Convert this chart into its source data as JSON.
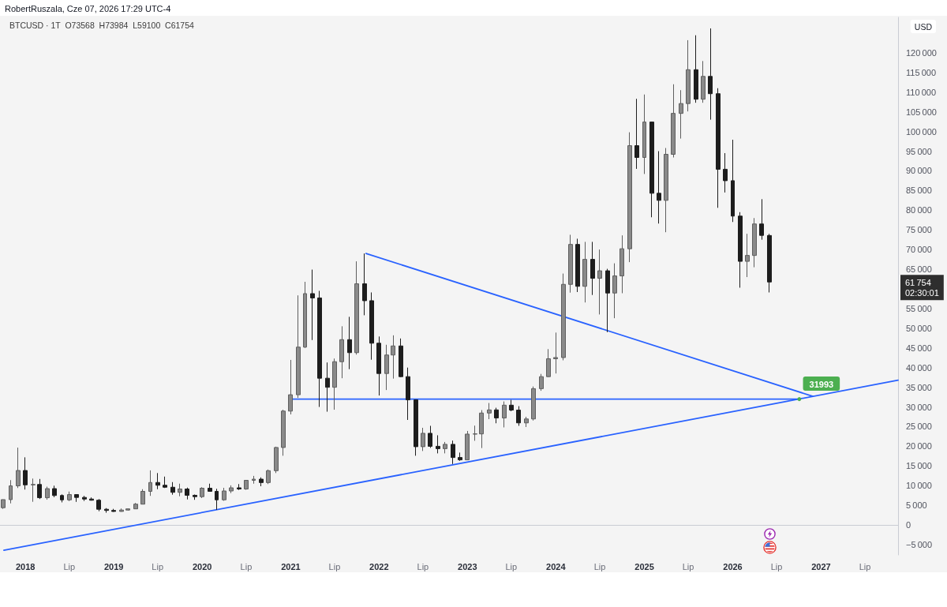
{
  "chart_data": {
    "type": "candlestick",
    "title": "RobertRuszala, Cze 07, 2026 17:29 UTC-4",
    "subtitle": "BTCUSD · 1T  O73568  H73984  L59100  C61754",
    "ylabel": "USD",
    "x": [
      "2017-10",
      "2017-11",
      "2017-12",
      "2018-01",
      "2018-02",
      "2018-03",
      "2018-04",
      "2018-05",
      "2018-06",
      "2018-07",
      "2018-08",
      "2018-09",
      "2018-10",
      "2018-11",
      "2018-12",
      "2019-01",
      "2019-02",
      "2019-03",
      "2019-04",
      "2019-05",
      "2019-06",
      "2019-07",
      "2019-08",
      "2019-09",
      "2019-10",
      "2019-11",
      "2019-12",
      "2020-01",
      "2020-02",
      "2020-03",
      "2020-04",
      "2020-05",
      "2020-06",
      "2020-07",
      "2020-08",
      "2020-09",
      "2020-10",
      "2020-11",
      "2020-12",
      "2021-01",
      "2021-02",
      "2021-03",
      "2021-04",
      "2021-05",
      "2021-06",
      "2021-07",
      "2021-08",
      "2021-09",
      "2021-10",
      "2021-11",
      "2021-12",
      "2022-01",
      "2022-02",
      "2022-03",
      "2022-04",
      "2022-05",
      "2022-06",
      "2022-07",
      "2022-08",
      "2022-09",
      "2022-10",
      "2022-11",
      "2022-12",
      "2023-01",
      "2023-02",
      "2023-03",
      "2023-04",
      "2023-05",
      "2023-06",
      "2023-07",
      "2023-08",
      "2023-09",
      "2023-10",
      "2023-11",
      "2023-12",
      "2024-01",
      "2024-02",
      "2024-03",
      "2024-04",
      "2024-05",
      "2024-06",
      "2024-07",
      "2024-08",
      "2024-09",
      "2024-10",
      "2024-11",
      "2024-12",
      "2025-01",
      "2025-02",
      "2025-03",
      "2025-04",
      "2025-05",
      "2025-06",
      "2025-07",
      "2025-08",
      "2025-09",
      "2025-10",
      "2025-11",
      "2025-12",
      "2026-01",
      "2026-02",
      "2026-03",
      "2026-04",
      "2026-05",
      "2026-06"
    ],
    "ohlc": [
      [
        4400,
        6470,
        4100,
        6450
      ],
      [
        6450,
        11400,
        5500,
        9950
      ],
      [
        9950,
        19666,
        9400,
        13850
      ],
      [
        13850,
        17200,
        9000,
        10200
      ],
      [
        10200,
        11800,
        5900,
        10300
      ],
      [
        10300,
        11700,
        6600,
        6930
      ],
      [
        6930,
        9750,
        6430,
        9240
      ],
      [
        9240,
        9990,
        7060,
        7500
      ],
      [
        7500,
        7780,
        5750,
        6390
      ],
      [
        6390,
        8500,
        6070,
        7730
      ],
      [
        7730,
        7760,
        5880,
        7010
      ],
      [
        7010,
        7400,
        6100,
        6600
      ],
      [
        6600,
        7000,
        6200,
        6300
      ],
      [
        6300,
        6600,
        3500,
        4000
      ],
      [
        4000,
        4300,
        3120,
        3700
      ],
      [
        3700,
        4100,
        3350,
        3450
      ],
      [
        3450,
        4200,
        3380,
        3800
      ],
      [
        3800,
        4120,
        3680,
        4100
      ],
      [
        4100,
        5600,
        4050,
        5300
      ],
      [
        5300,
        9100,
        5300,
        8550
      ],
      [
        8550,
        13880,
        7400,
        10800
      ],
      [
        10800,
        13200,
        9100,
        10100
      ],
      [
        10100,
        12300,
        9400,
        9600
      ],
      [
        9600,
        10900,
        7700,
        8300
      ],
      [
        8300,
        10500,
        7300,
        9150
      ],
      [
        9150,
        9500,
        6500,
        7550
      ],
      [
        7550,
        7750,
        6400,
        7200
      ],
      [
        7200,
        9600,
        6850,
        9350
      ],
      [
        9350,
        10500,
        8450,
        8550
      ],
      [
        8550,
        9200,
        3850,
        6400
      ],
      [
        6400,
        9450,
        6150,
        8650
      ],
      [
        8650,
        10070,
        8100,
        9450
      ],
      [
        9450,
        10400,
        8900,
        9150
      ],
      [
        9150,
        11450,
        8950,
        11350
      ],
      [
        11350,
        12480,
        10500,
        11650
      ],
      [
        11650,
        12100,
        9850,
        10780
      ],
      [
        10780,
        14100,
        10400,
        13800
      ],
      [
        13800,
        19900,
        13200,
        19700
      ],
      [
        19700,
        29300,
        17600,
        28950
      ],
      [
        28950,
        41950,
        28100,
        33100
      ],
      [
        33100,
        58350,
        32300,
        45200
      ],
      [
        45200,
        61800,
        45000,
        58800
      ],
      [
        58800,
        64900,
        47000,
        57700
      ],
      [
        57700,
        59500,
        30000,
        37300
      ],
      [
        37300,
        41300,
        28800,
        35000
      ],
      [
        35000,
        42300,
        29300,
        41500
      ],
      [
        41500,
        50500,
        37300,
        47100
      ],
      [
        47100,
        52900,
        39600,
        43800
      ],
      [
        43800,
        67000,
        43300,
        61300
      ],
      [
        61300,
        69000,
        53300,
        57000
      ],
      [
        57000,
        59100,
        42000,
        46200
      ],
      [
        46200,
        47900,
        32900,
        38500
      ],
      [
        38500,
        45800,
        34300,
        43200
      ],
      [
        43200,
        48200,
        37200,
        45500
      ],
      [
        45500,
        47400,
        37600,
        37700
      ],
      [
        37700,
        40000,
        26700,
        31800
      ],
      [
        31800,
        31900,
        17600,
        19900
      ],
      [
        19900,
        24700,
        18800,
        23300
      ],
      [
        23300,
        25200,
        19600,
        20000
      ],
      [
        20000,
        22800,
        18200,
        19400
      ],
      [
        19400,
        21100,
        18200,
        20500
      ],
      [
        20500,
        21450,
        15500,
        17150
      ],
      [
        17150,
        18400,
        16300,
        16550
      ],
      [
        16550,
        23900,
        16500,
        23100
      ],
      [
        23100,
        25250,
        21400,
        23150
      ],
      [
        23150,
        29200,
        19550,
        28450
      ],
      [
        28450,
        31000,
        26900,
        29250
      ],
      [
        29250,
        29800,
        25850,
        27200
      ],
      [
        27200,
        31400,
        24800,
        30450
      ],
      [
        30450,
        31800,
        28900,
        29200
      ],
      [
        29200,
        30200,
        25200,
        25950
      ],
      [
        25950,
        27500,
        24900,
        26950
      ],
      [
        26950,
        35200,
        26550,
        34650
      ],
      [
        34650,
        38400,
        34100,
        37700
      ],
      [
        37700,
        44700,
        37600,
        42250
      ],
      [
        42250,
        48900,
        38500,
        42550
      ],
      [
        42550,
        63900,
        41850,
        61150
      ],
      [
        61150,
        73750,
        59050,
        71300
      ],
      [
        71300,
        72750,
        59200,
        60650
      ],
      [
        60650,
        71950,
        56550,
        67500
      ],
      [
        67500,
        71950,
        58450,
        62700
      ],
      [
        62700,
        70000,
        53500,
        64600
      ],
      [
        64600,
        65100,
        49000,
        58950
      ],
      [
        58950,
        66500,
        52550,
        63300
      ],
      [
        63300,
        73600,
        58900,
        70200
      ],
      [
        70200,
        99800,
        66800,
        96400
      ],
      [
        96400,
        108300,
        90500,
        93400
      ],
      [
        93400,
        109400,
        89200,
        102400
      ],
      [
        102400,
        102500,
        78200,
        84300
      ],
      [
        84300,
        95000,
        76600,
        82500
      ],
      [
        82500,
        95800,
        74400,
        94200
      ],
      [
        94200,
        112000,
        93400,
        104600
      ],
      [
        104600,
        110500,
        98200,
        107100
      ],
      [
        107100,
        123200,
        105100,
        115700
      ],
      [
        115700,
        124450,
        107300,
        108200
      ],
      [
        108200,
        117900,
        107300,
        114000
      ],
      [
        114000,
        126200,
        103000,
        109600
      ],
      [
        109600,
        111000,
        80600,
        90400
      ],
      [
        90400,
        94500,
        84500,
        87500
      ],
      [
        87500,
        97900,
        77000,
        78500
      ],
      [
        78500,
        79500,
        60300,
        67000
      ],
      [
        67000,
        74000,
        63000,
        68500
      ],
      [
        68500,
        78000,
        65500,
        76500
      ],
      [
        76500,
        82800,
        72500,
        73600
      ],
      [
        73568,
        73984,
        59100,
        61754
      ]
    ],
    "series": [
      {
        "type": "line",
        "color": "#2962ff",
        "x": [
          "2021-11-08",
          "2026-11-28"
        ],
        "values": [
          69000,
          32700
        ]
      },
      {
        "type": "line",
        "color": "#2962ff",
        "x": [
          "2021-01-04",
          "2026-10-03"
        ],
        "values": [
          31993,
          31993
        ]
      },
      {
        "type": "line",
        "color": "#2962ff",
        "x": [
          "2017-10-04",
          "2027-11-15"
        ],
        "values": [
          -6400,
          36800
        ]
      }
    ],
    "marker": "none",
    "line_style": "solid",
    "xlim": [
      "2017-09-18",
      "2027-11-15"
    ],
    "xticks": [
      {
        "value": "2018-01",
        "label": "2018"
      },
      {
        "value": "2018-07",
        "label": "Lip"
      },
      {
        "value": "2019-01",
        "label": "2019"
      },
      {
        "value": "2019-07",
        "label": "Lip"
      },
      {
        "value": "2020-01",
        "label": "2020"
      },
      {
        "value": "2020-07",
        "label": "Lip"
      },
      {
        "value": "2021-01",
        "label": "2021"
      },
      {
        "value": "2021-07",
        "label": "Lip"
      },
      {
        "value": "2022-01",
        "label": "2022"
      },
      {
        "value": "2022-07",
        "label": "Lip"
      },
      {
        "value": "2023-01",
        "label": "2023"
      },
      {
        "value": "2023-07",
        "label": "Lip"
      },
      {
        "value": "2024-01",
        "label": "2024"
      },
      {
        "value": "2024-07",
        "label": "Lip"
      },
      {
        "value": "2025-01",
        "label": "2025"
      },
      {
        "value": "2025-07",
        "label": "Lip"
      },
      {
        "value": "2026-01",
        "label": "2026"
      },
      {
        "value": "2026-07",
        "label": "Lip"
      },
      {
        "value": "2027-01",
        "label": "2027"
      },
      {
        "value": "2027-07",
        "label": "Lip"
      }
    ],
    "ylim": [
      -7600,
      129000
    ],
    "yticks": [
      {
        "value": -5000,
        "label": "−5 000"
      },
      0,
      {
        "value": 5000,
        "label": "5 000"
      },
      {
        "value": 10000,
        "label": "10 000"
      },
      {
        "value": 15000,
        "label": "15 000"
      },
      {
        "value": 20000,
        "label": "20 000"
      },
      {
        "value": 25000,
        "label": "25 000"
      },
      {
        "value": 30000,
        "label": "30 000"
      },
      {
        "value": 35000,
        "label": "35 000"
      },
      {
        "value": 40000,
        "label": "40 000"
      },
      {
        "value": 45000,
        "label": "45 000"
      },
      {
        "value": 50000,
        "label": "50 000"
      },
      {
        "value": 55000,
        "label": "55 000"
      },
      {
        "value": 65000,
        "label": "65 000"
      },
      {
        "value": 70000,
        "label": "70 000"
      },
      {
        "value": 75000,
        "label": "75 000"
      },
      {
        "value": 80000,
        "label": "80 000"
      },
      {
        "value": 85000,
        "label": "85 000"
      },
      {
        "value": 90000,
        "label": "90 000"
      },
      {
        "value": 95000,
        "label": "95 000"
      },
      {
        "value": 100000,
        "label": "100 000"
      },
      {
        "value": 105000,
        "label": "105 000"
      },
      {
        "value": 110000,
        "label": "110 000"
      },
      {
        "value": 115000,
        "label": "115 000"
      },
      {
        "value": 120000,
        "label": "120 000"
      }
    ],
    "annotations": [
      {
        "text": "31993",
        "x": "2026-10-03",
        "y": 31993
      },
      "61 754\n02:30:01"
    ]
  }
}
